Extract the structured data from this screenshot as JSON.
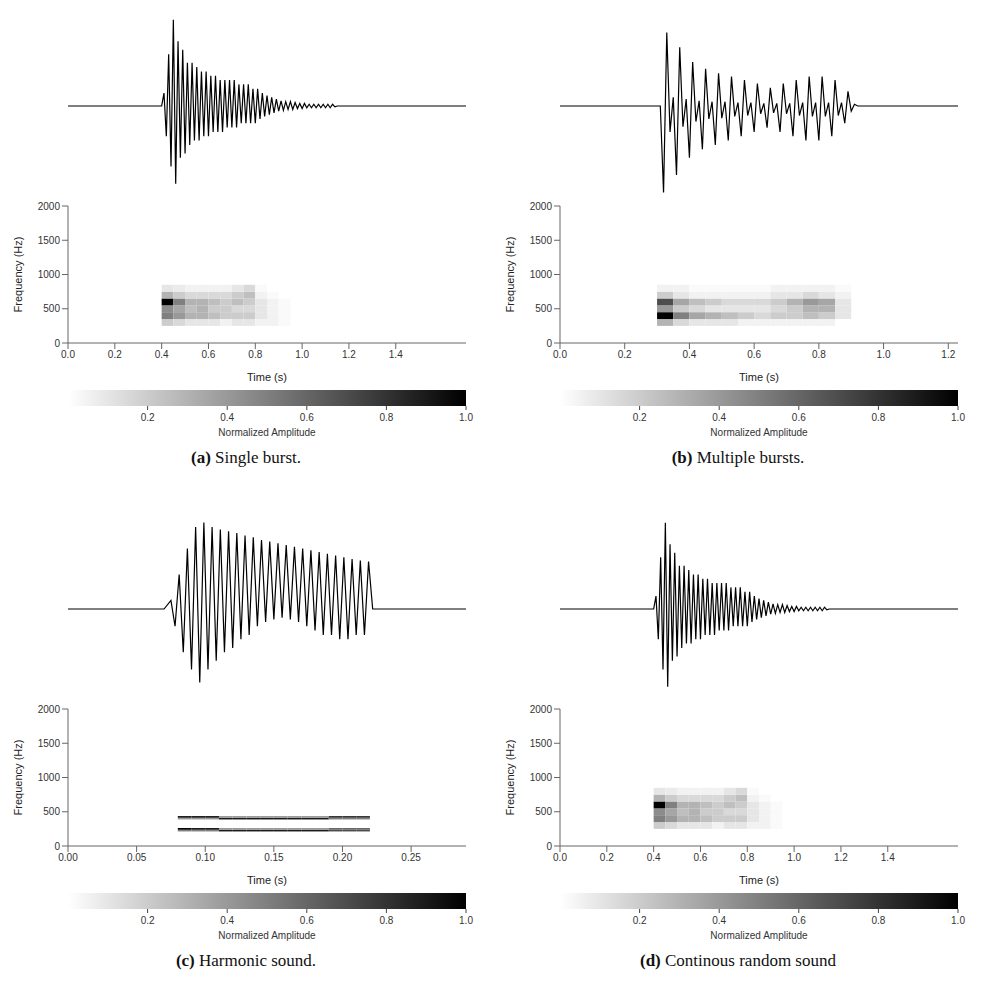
{
  "chart_data": [
    {
      "type": "heatmap",
      "panel": "(a)",
      "title": "Single burst.",
      "x_label": "Time (s)",
      "y_label": "Frequency (Hz)",
      "xlim": [
        0,
        1.7
      ],
      "xticks": [
        {
          "value": 0,
          "label": "0.0"
        },
        0.2,
        0.4,
        0.6,
        0.8,
        {
          "value": 1,
          "label": "1.0"
        },
        1.2,
        1.4
      ],
      "ylim": [
        0,
        2000
      ],
      "yticks": [
        0,
        500,
        1000,
        1500,
        2000
      ],
      "cells": {
        "t": [
          0.425,
          0.475,
          0.525,
          0.575,
          0.625,
          0.675,
          0.725,
          0.775,
          0.825,
          0.875,
          0.925,
          0.975
        ],
        "f": [
          300,
          400,
          500,
          600,
          700,
          800
        ],
        "z": [
          [
            0.2,
            0.15,
            0.1,
            0.1,
            0.1,
            0.05,
            0.1,
            0.1,
            0.05,
            0.05,
            0.02,
            0
          ],
          [
            0.5,
            0.4,
            0.3,
            0.3,
            0.25,
            0.2,
            0.2,
            0.2,
            0.1,
            0.05,
            0.02,
            0
          ],
          [
            0.45,
            0.35,
            0.25,
            0.3,
            0.2,
            0.2,
            0.15,
            0.15,
            0.1,
            0.05,
            0.02,
            0
          ],
          [
            1.0,
            0.5,
            0.3,
            0.3,
            0.25,
            0.2,
            0.25,
            0.2,
            0.1,
            0.05,
            0.02,
            0
          ],
          [
            0.3,
            0.2,
            0.15,
            0.15,
            0.15,
            0.15,
            0.2,
            0.25,
            0.05,
            0.02,
            0,
            0
          ],
          [
            0.1,
            0.08,
            0.05,
            0.05,
            0.05,
            0.05,
            0.1,
            0.15,
            0.02,
            0,
            0,
            0
          ]
        ]
      },
      "colorbar": {
        "range": [
          0,
          1
        ],
        "ticks": [
          0.2,
          0.4,
          0.6,
          0.8,
          {
            "value": 1,
            "label": "1.0"
          }
        ],
        "label": "Normalized Amplitude"
      },
      "waveform": {
        "type": "line",
        "color": "#000000",
        "tick_labels": false,
        "ylim": [
          -1.1,
          1.1
        ],
        "x": [
          0,
          0.4,
          0.41,
          0.42,
          0.43,
          0.44,
          0.45,
          0.46,
          0.47,
          0.48,
          0.49,
          0.5,
          0.51,
          0.52,
          0.53,
          0.54,
          0.55,
          0.56,
          0.57,
          0.58,
          0.59,
          0.6,
          0.61,
          0.62,
          0.63,
          0.64,
          0.65,
          0.66,
          0.67,
          0.68,
          0.69,
          0.7,
          0.71,
          0.72,
          0.73,
          0.74,
          0.75,
          0.76,
          0.77,
          0.78,
          0.79,
          0.8,
          0.81,
          0.82,
          0.83,
          0.84,
          0.85,
          0.86,
          0.87,
          0.88,
          0.89,
          0.9,
          0.91,
          0.92,
          0.93,
          0.94,
          0.95,
          0.96,
          0.97,
          0.98,
          0.99,
          1.0,
          1.01,
          1.02,
          1.03,
          1.04,
          1.05,
          1.06,
          1.07,
          1.08,
          1.09,
          1.1,
          1.11,
          1.12,
          1.13,
          1.14,
          1.15,
          1.7
        ],
        "values": [
          0,
          0,
          0.15,
          -0.35,
          0.6,
          -0.7,
          1.0,
          -0.9,
          0.75,
          -0.6,
          0.65,
          -0.55,
          0.5,
          -0.45,
          0.5,
          -0.4,
          0.45,
          -0.4,
          0.4,
          -0.35,
          0.4,
          -0.35,
          0.35,
          -0.3,
          0.35,
          -0.3,
          0.3,
          -0.3,
          0.3,
          -0.25,
          0.3,
          -0.25,
          0.3,
          -0.25,
          0.25,
          -0.2,
          0.25,
          -0.2,
          0.25,
          -0.2,
          0.2,
          -0.2,
          0.2,
          -0.15,
          0.15,
          -0.12,
          0.12,
          -0.1,
          0.1,
          -0.08,
          0.08,
          -0.06,
          0.06,
          -0.05,
          0.05,
          -0.04,
          0.05,
          -0.04,
          0.04,
          -0.03,
          0.03,
          -0.03,
          0.03,
          -0.02,
          0.02,
          -0.02,
          0.02,
          -0.02,
          0.02,
          -0.02,
          0.02,
          -0.02,
          0.02,
          -0.02,
          0.02,
          -0.01,
          0,
          0
        ]
      }
    },
    {
      "type": "heatmap",
      "panel": "(b)",
      "title": "Multiple bursts.",
      "x_label": "Time (s)",
      "y_label": "Frequency (Hz)",
      "xlim": [
        0,
        1.23
      ],
      "xticks": [
        {
          "value": 0,
          "label": "0.0"
        },
        0.2,
        0.4,
        0.6,
        0.8,
        {
          "value": 1,
          "label": "1.0"
        },
        1.2
      ],
      "ylim": [
        0,
        2000
      ],
      "yticks": [
        0,
        500,
        1000,
        1500,
        2000
      ],
      "cells": {
        "t": [
          0.325,
          0.375,
          0.425,
          0.475,
          0.525,
          0.575,
          0.625,
          0.675,
          0.725,
          0.775,
          0.825,
          0.875
        ],
        "f": [
          300,
          400,
          500,
          600,
          700,
          800
        ],
        "z": [
          [
            0.3,
            0.15,
            0.1,
            0.1,
            0.1,
            0.05,
            0.05,
            0.05,
            0.05,
            0.05,
            0.05,
            0
          ],
          [
            1.0,
            0.5,
            0.35,
            0.3,
            0.25,
            0.2,
            0.15,
            0.2,
            0.2,
            0.25,
            0.2,
            0.1
          ],
          [
            0.4,
            0.2,
            0.15,
            0.1,
            0.1,
            0.1,
            0.1,
            0.15,
            0.2,
            0.3,
            0.3,
            0.1
          ],
          [
            0.7,
            0.35,
            0.25,
            0.2,
            0.15,
            0.15,
            0.15,
            0.2,
            0.3,
            0.4,
            0.35,
            0.1
          ],
          [
            0.2,
            0.1,
            0.05,
            0.05,
            0.05,
            0.05,
            0.05,
            0.1,
            0.1,
            0.15,
            0.1,
            0.05
          ],
          [
            0.05,
            0.05,
            0.02,
            0.02,
            0.02,
            0.02,
            0.02,
            0.05,
            0.05,
            0.05,
            0.05,
            0.02
          ]
        ]
      },
      "colorbar": {
        "range": [
          0,
          1
        ],
        "ticks": [
          0.2,
          0.4,
          0.6,
          0.8,
          {
            "value": 1,
            "label": "1.0"
          }
        ],
        "label": "Normalized Amplitude"
      },
      "waveform": {
        "type": "line",
        "color": "#000000",
        "tick_labels": false,
        "ylim": [
          -1.1,
          1.1
        ],
        "x": [
          0,
          0.31,
          0.32,
          0.33,
          0.34,
          0.35,
          0.36,
          0.37,
          0.38,
          0.39,
          0.4,
          0.41,
          0.42,
          0.43,
          0.44,
          0.45,
          0.46,
          0.47,
          0.48,
          0.49,
          0.5,
          0.51,
          0.52,
          0.53,
          0.54,
          0.55,
          0.56,
          0.57,
          0.58,
          0.59,
          0.6,
          0.61,
          0.62,
          0.63,
          0.64,
          0.65,
          0.66,
          0.67,
          0.68,
          0.69,
          0.7,
          0.71,
          0.72,
          0.73,
          0.74,
          0.75,
          0.76,
          0.77,
          0.78,
          0.79,
          0.8,
          0.81,
          0.82,
          0.83,
          0.84,
          0.85,
          0.86,
          0.87,
          0.88,
          0.89,
          0.9,
          0.91,
          0.92,
          1.23
        ],
        "values": [
          0,
          0,
          -1.0,
          0.85,
          -0.3,
          0.1,
          -0.8,
          0.68,
          -0.24,
          0.08,
          -0.6,
          0.51,
          -0.18,
          0.06,
          -0.5,
          0.43,
          -0.15,
          0.05,
          -0.45,
          0.38,
          -0.14,
          0.05,
          -0.4,
          0.34,
          -0.12,
          0.04,
          -0.35,
          0.3,
          -0.11,
          0.04,
          -0.3,
          0.26,
          -0.09,
          0.03,
          -0.25,
          0.21,
          -0.08,
          0.03,
          -0.3,
          0.26,
          -0.09,
          0.03,
          -0.35,
          0.3,
          -0.11,
          0.04,
          -0.4,
          0.34,
          -0.12,
          0.04,
          -0.4,
          0.34,
          -0.12,
          0.04,
          -0.35,
          0.3,
          -0.11,
          0.04,
          -0.2,
          0.17,
          -0.06,
          0.02,
          0,
          0
        ]
      }
    },
    {
      "type": "heatmap",
      "panel": "(c)",
      "title": "Harmonic sound.",
      "x_label": "Time (s)",
      "y_label": "Frequency (Hz)",
      "xlim": [
        0,
        0.29
      ],
      "xticks": [
        {
          "value": 0,
          "label": "0.00"
        },
        0.05,
        {
          "value": 0.1,
          "label": "0.10"
        },
        0.15,
        {
          "value": 0.2,
          "label": "0.20"
        },
        0.25
      ],
      "ylim": [
        0,
        2000
      ],
      "yticks": [
        0,
        500,
        1000,
        1500,
        2000
      ],
      "cells": {
        "t": [
          0.085,
          0.095,
          0.105,
          0.115,
          0.125,
          0.135,
          0.145,
          0.155,
          0.165,
          0.175,
          0.185,
          0.195,
          0.205,
          0.215
        ],
        "f": [
          225,
          250,
          400,
          425
        ],
        "z": [
          [
            0.5,
            0.5,
            0.5,
            0.9,
            0.9,
            0.9,
            0.9,
            0.9,
            0.9,
            0.9,
            0.9,
            0.7,
            0.7,
            0.7
          ],
          [
            1.0,
            0.9,
            0.9,
            0.4,
            0.4,
            0.4,
            0.4,
            0.4,
            0.4,
            0.4,
            0.4,
            0.6,
            0.6,
            0.6
          ],
          [
            0.4,
            0.4,
            0.4,
            0.9,
            0.9,
            0.9,
            0.9,
            0.9,
            0.9,
            0.9,
            0.9,
            0.5,
            0.5,
            0.5
          ],
          [
            0.9,
            0.9,
            0.9,
            0.4,
            0.4,
            0.4,
            0.4,
            0.4,
            0.4,
            0.4,
            0.4,
            0.8,
            0.8,
            0.8
          ]
        ]
      },
      "colorbar": {
        "range": [
          0,
          1
        ],
        "ticks": [
          0.2,
          0.4,
          0.6,
          0.8,
          {
            "value": 1,
            "label": "1.0"
          }
        ],
        "label": "Normalized Amplitude"
      },
      "waveform": {
        "type": "line",
        "color": "#000000",
        "tick_labels": false,
        "ylim": [
          -1.1,
          1.1
        ],
        "x": [
          0,
          0.07,
          0.075,
          0.078,
          0.081,
          0.084,
          0.087,
          0.09,
          0.093,
          0.096,
          0.099,
          0.102,
          0.105,
          0.108,
          0.111,
          0.114,
          0.117,
          0.12,
          0.123,
          0.126,
          0.129,
          0.132,
          0.135,
          0.138,
          0.141,
          0.144,
          0.147,
          0.15,
          0.153,
          0.156,
          0.159,
          0.162,
          0.165,
          0.168,
          0.171,
          0.174,
          0.177,
          0.18,
          0.183,
          0.186,
          0.189,
          0.192,
          0.195,
          0.198,
          0.201,
          0.204,
          0.207,
          0.21,
          0.213,
          0.216,
          0.219,
          0.222,
          0.29
        ],
        "values": [
          0,
          0,
          0.1,
          -0.2,
          0.4,
          -0.5,
          0.7,
          -0.7,
          0.95,
          -0.85,
          1.0,
          -0.7,
          0.95,
          -0.6,
          0.92,
          -0.5,
          0.9,
          -0.45,
          0.88,
          -0.35,
          0.85,
          -0.3,
          0.83,
          -0.2,
          0.8,
          -0.15,
          0.78,
          -0.12,
          0.76,
          -0.1,
          0.74,
          -0.12,
          0.72,
          -0.15,
          0.7,
          -0.2,
          0.68,
          -0.25,
          0.66,
          -0.3,
          0.64,
          -0.3,
          0.62,
          -0.35,
          0.6,
          -0.35,
          0.58,
          -0.3,
          0.56,
          -0.3,
          0.55,
          0,
          0
        ]
      }
    },
    {
      "type": "heatmap",
      "panel": "(d)",
      "title": "Continous random sound",
      "x_label": "Time (s)",
      "y_label": "Frequency (Hz)",
      "xlim": [
        0,
        1.7
      ],
      "xticks": [
        {
          "value": 0,
          "label": "0.0"
        },
        0.2,
        0.4,
        0.6,
        0.8,
        {
          "value": 1,
          "label": "1.0"
        },
        1.2,
        1.4
      ],
      "ylim": [
        0,
        2000
      ],
      "yticks": [
        0,
        500,
        1000,
        1500,
        2000
      ],
      "cells": {
        "t": [
          0.425,
          0.475,
          0.525,
          0.575,
          0.625,
          0.675,
          0.725,
          0.775,
          0.825,
          0.875,
          0.925,
          0.975
        ],
        "f": [
          300,
          400,
          500,
          600,
          700,
          800
        ],
        "z": [
          [
            0.2,
            0.15,
            0.1,
            0.1,
            0.1,
            0.05,
            0.1,
            0.1,
            0.05,
            0.05,
            0.02,
            0
          ],
          [
            0.5,
            0.4,
            0.3,
            0.3,
            0.25,
            0.2,
            0.2,
            0.2,
            0.1,
            0.05,
            0.02,
            0
          ],
          [
            0.45,
            0.35,
            0.25,
            0.3,
            0.2,
            0.2,
            0.15,
            0.15,
            0.1,
            0.05,
            0.02,
            0
          ],
          [
            1.0,
            0.5,
            0.3,
            0.3,
            0.25,
            0.2,
            0.25,
            0.2,
            0.1,
            0.05,
            0.02,
            0
          ],
          [
            0.3,
            0.2,
            0.15,
            0.15,
            0.15,
            0.15,
            0.2,
            0.25,
            0.05,
            0.02,
            0,
            0
          ],
          [
            0.1,
            0.08,
            0.05,
            0.05,
            0.05,
            0.05,
            0.1,
            0.15,
            0.02,
            0,
            0,
            0
          ]
        ]
      },
      "colorbar": {
        "range": [
          0,
          1
        ],
        "ticks": [
          0.2,
          0.4,
          0.6,
          0.8,
          {
            "value": 1,
            "label": "1.0"
          }
        ],
        "label": "Normalized Amplitude"
      },
      "waveform": {
        "type": "line",
        "color": "#000000",
        "tick_labels": false,
        "ylim": [
          -1.1,
          1.1
        ],
        "x": [
          0,
          0.4,
          0.41,
          0.42,
          0.43,
          0.44,
          0.45,
          0.46,
          0.47,
          0.48,
          0.49,
          0.5,
          0.51,
          0.52,
          0.53,
          0.54,
          0.55,
          0.56,
          0.57,
          0.58,
          0.59,
          0.6,
          0.61,
          0.62,
          0.63,
          0.64,
          0.65,
          0.66,
          0.67,
          0.68,
          0.69,
          0.7,
          0.71,
          0.72,
          0.73,
          0.74,
          0.75,
          0.76,
          0.77,
          0.78,
          0.79,
          0.8,
          0.81,
          0.82,
          0.83,
          0.84,
          0.85,
          0.86,
          0.87,
          0.88,
          0.89,
          0.9,
          0.91,
          0.92,
          0.93,
          0.94,
          0.95,
          0.96,
          0.97,
          0.98,
          0.99,
          1.0,
          1.01,
          1.02,
          1.03,
          1.04,
          1.05,
          1.06,
          1.07,
          1.08,
          1.09,
          1.1,
          1.11,
          1.12,
          1.13,
          1.14,
          1.15,
          1.7
        ],
        "values": [
          0,
          0,
          0.15,
          -0.35,
          0.6,
          -0.7,
          1.0,
          -0.9,
          0.75,
          -0.6,
          0.65,
          -0.55,
          0.5,
          -0.45,
          0.5,
          -0.4,
          0.45,
          -0.4,
          0.4,
          -0.35,
          0.4,
          -0.35,
          0.35,
          -0.3,
          0.35,
          -0.3,
          0.3,
          -0.3,
          0.3,
          -0.25,
          0.3,
          -0.25,
          0.3,
          -0.25,
          0.25,
          -0.2,
          0.25,
          -0.2,
          0.25,
          -0.2,
          0.2,
          -0.2,
          0.2,
          -0.15,
          0.15,
          -0.12,
          0.12,
          -0.1,
          0.1,
          -0.08,
          0.08,
          -0.06,
          0.06,
          -0.05,
          0.05,
          -0.04,
          0.05,
          -0.04,
          0.04,
          -0.03,
          0.03,
          -0.03,
          0.03,
          -0.02,
          0.02,
          -0.02,
          0.02,
          -0.02,
          0.02,
          -0.02,
          0.02,
          -0.02,
          0.02,
          -0.02,
          0.02,
          -0.01,
          0,
          0
        ]
      }
    }
  ]
}
